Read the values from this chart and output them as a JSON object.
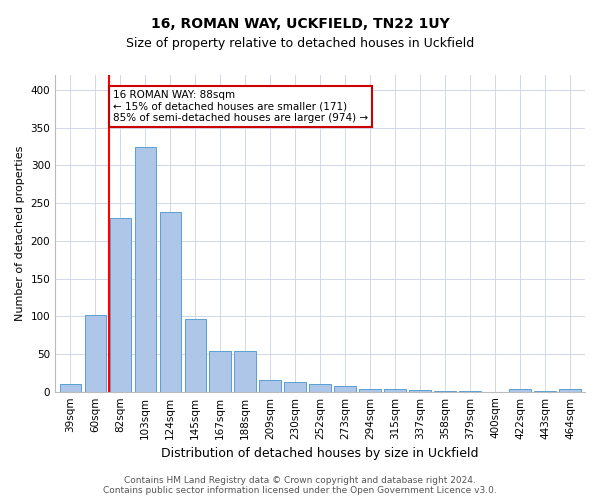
{
  "title_line1": "16, ROMAN WAY, UCKFIELD, TN22 1UY",
  "title_line2": "Size of property relative to detached houses in Uckfield",
  "xlabel": "Distribution of detached houses by size in Uckfield",
  "ylabel": "Number of detached properties",
  "categories": [
    "39sqm",
    "60sqm",
    "82sqm",
    "103sqm",
    "124sqm",
    "145sqm",
    "167sqm",
    "188sqm",
    "209sqm",
    "230sqm",
    "252sqm",
    "273sqm",
    "294sqm",
    "315sqm",
    "337sqm",
    "358sqm",
    "379sqm",
    "400sqm",
    "422sqm",
    "443sqm",
    "464sqm"
  ],
  "values": [
    10,
    102,
    230,
    325,
    238,
    97,
    54,
    54,
    15,
    13,
    10,
    7,
    4,
    4,
    2,
    1,
    1,
    0,
    3,
    1,
    3
  ],
  "bar_color": "#aec6e8",
  "bar_edge_color": "#5a9fd4",
  "annotation_line1": "16 ROMAN WAY: 88sqm",
  "annotation_line2": "← 15% of detached houses are smaller (171)",
  "annotation_line3": "85% of semi-detached houses are larger (974) →",
  "annotation_box_color": "#ffffff",
  "annotation_box_edge": "#cc0000",
  "redline_bar_index": 2,
  "ylim": [
    0,
    420
  ],
  "yticks": [
    0,
    50,
    100,
    150,
    200,
    250,
    300,
    350,
    400
  ],
  "footer_line1": "Contains HM Land Registry data © Crown copyright and database right 2024.",
  "footer_line2": "Contains public sector information licensed under the Open Government Licence v3.0.",
  "background_color": "#ffffff",
  "grid_color": "#d0d8e8",
  "title1_fontsize": 10,
  "title2_fontsize": 9,
  "ylabel_fontsize": 8,
  "xlabel_fontsize": 9,
  "tick_fontsize": 7.5,
  "annotation_fontsize": 7.5,
  "footer_fontsize": 6.5
}
